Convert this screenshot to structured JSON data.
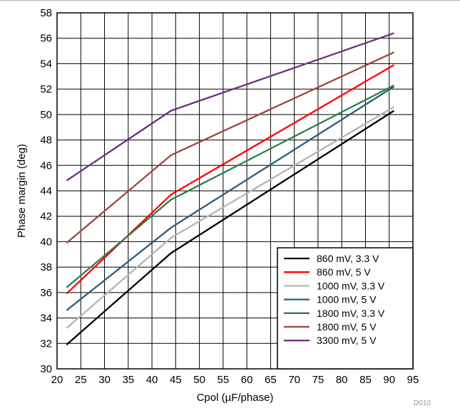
{
  "figure_id": "D010",
  "chart_data": {
    "type": "line",
    "title": "",
    "xlabel": "Cpol (µF/phase)",
    "ylabel": "Phase margin (deg)",
    "xlim": [
      20,
      95
    ],
    "ylim": [
      30,
      58
    ],
    "xticks": [
      20,
      25,
      30,
      35,
      40,
      45,
      50,
      55,
      60,
      65,
      70,
      75,
      80,
      85,
      90,
      95
    ],
    "yticks": [
      30,
      32,
      34,
      36,
      38,
      40,
      42,
      44,
      46,
      48,
      50,
      52,
      54,
      56,
      58
    ],
    "grid": true,
    "legend_position": "bottom-right",
    "series": [
      {
        "name": "860 mV, 3.3 V",
        "color": "#000000",
        "x": [
          22,
          44,
          91
        ],
        "y": [
          31.9,
          39.1,
          50.3
        ]
      },
      {
        "name": "860 mV, 5 V",
        "color": "#ff0000",
        "x": [
          22,
          44,
          91
        ],
        "y": [
          35.9,
          43.7,
          53.9
        ]
      },
      {
        "name": "1000 mV, 3.3 V",
        "color": "#b4b4b4",
        "x": [
          22,
          44,
          91
        ],
        "y": [
          33.2,
          40.3,
          50.6
        ]
      },
      {
        "name": "1000 mV, 5 V",
        "color": "#2e5d7e",
        "x": [
          22,
          44,
          91
        ],
        "y": [
          34.6,
          41.1,
          52.2
        ]
      },
      {
        "name": "1800 mV, 3.3 V",
        "color": "#2e7d4a",
        "x": [
          22,
          44,
          91
        ],
        "y": [
          36.4,
          43.3,
          52.3
        ]
      },
      {
        "name": "1800 mV, 5 V",
        "color": "#a0453c",
        "x": [
          22,
          44,
          91
        ],
        "y": [
          39.9,
          46.8,
          54.9
        ]
      },
      {
        "name": "3300 mV, 5 V",
        "color": "#6f2c82",
        "x": [
          22,
          44,
          91
        ],
        "y": [
          44.8,
          50.3,
          56.4
        ]
      }
    ]
  }
}
